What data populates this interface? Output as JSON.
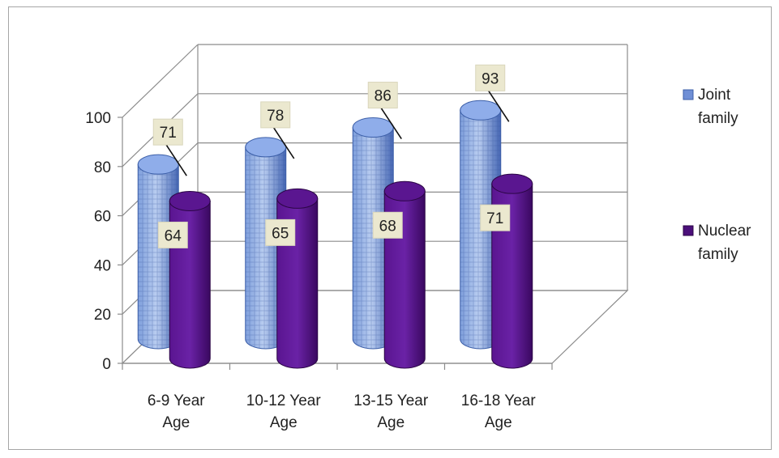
{
  "chart_data": {
    "type": "bar",
    "style": "3d-cylinder",
    "categories": [
      [
        "6-9 Year",
        "Age"
      ],
      [
        "10-12 Year",
        "Age"
      ],
      [
        "13-15 Year",
        "Age"
      ],
      [
        "16-18 Year",
        "Age"
      ]
    ],
    "series": [
      {
        "name": [
          "Joint",
          "family"
        ],
        "values": [
          71,
          78,
          86,
          93
        ],
        "color": "#4f78c8"
      },
      {
        "name": [
          "Nuclear",
          "family"
        ],
        "values": [
          64,
          65,
          68,
          71
        ],
        "color": "#4b0f7a"
      }
    ],
    "ylim": [
      0,
      100
    ],
    "yticks": [
      0,
      20,
      40,
      60,
      80,
      100
    ],
    "grid": true,
    "legend": "right",
    "data_label_style": "callout-box",
    "data_label_fill": "#ebe8cf"
  }
}
